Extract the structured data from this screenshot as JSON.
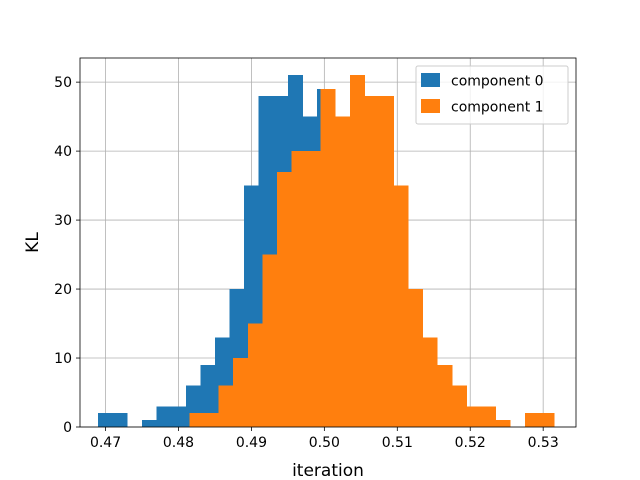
{
  "chart_data": {
    "type": "bar",
    "subtype": "histogram",
    "title": "",
    "xlabel": "iteration",
    "ylabel": "KL",
    "xlim": [
      0.4665,
      0.5345
    ],
    "ylim": [
      0,
      53.5
    ],
    "xticks": [
      0.47,
      0.48,
      0.49,
      0.5,
      0.51,
      0.52,
      0.53
    ],
    "xtick_labels": [
      "0.47",
      "0.48",
      "0.49",
      "0.50",
      "0.51",
      "0.52",
      "0.53"
    ],
    "yticks": [
      0,
      10,
      20,
      30,
      40,
      50
    ],
    "ytick_labels": [
      "0",
      "10",
      "20",
      "30",
      "40",
      "50"
    ],
    "grid": true,
    "legend_position": "top-right",
    "series": [
      {
        "name": "component 0",
        "color": "#1f77b4",
        "bins": [
          {
            "x0": 0.469,
            "x1": 0.471,
            "count": 2
          },
          {
            "x0": 0.471,
            "x1": 0.473,
            "count": 2
          },
          {
            "x0": 0.475,
            "x1": 0.477,
            "count": 1
          },
          {
            "x0": 0.477,
            "x1": 0.479,
            "count": 3
          },
          {
            "x0": 0.479,
            "x1": 0.481,
            "count": 3
          },
          {
            "x0": 0.481,
            "x1": 0.483,
            "count": 6
          },
          {
            "x0": 0.483,
            "x1": 0.485,
            "count": 9
          },
          {
            "x0": 0.485,
            "x1": 0.487,
            "count": 13
          },
          {
            "x0": 0.487,
            "x1": 0.489,
            "count": 20
          },
          {
            "x0": 0.489,
            "x1": 0.491,
            "count": 35
          },
          {
            "x0": 0.491,
            "x1": 0.493,
            "count": 48
          },
          {
            "x0": 0.493,
            "x1": 0.495,
            "count": 48
          },
          {
            "x0": 0.495,
            "x1": 0.497,
            "count": 51
          },
          {
            "x0": 0.497,
            "x1": 0.499,
            "count": 45
          },
          {
            "x0": 0.499,
            "x1": 0.501,
            "count": 49
          }
        ]
      },
      {
        "name": "component 1",
        "color": "#ff7f0e",
        "bins": [
          {
            "x0": 0.4815,
            "x1": 0.4835,
            "count": 2
          },
          {
            "x0": 0.4835,
            "x1": 0.4855,
            "count": 2
          },
          {
            "x0": 0.4855,
            "x1": 0.4875,
            "count": 6
          },
          {
            "x0": 0.4875,
            "x1": 0.4895,
            "count": 10
          },
          {
            "x0": 0.4895,
            "x1": 0.4915,
            "count": 15
          },
          {
            "x0": 0.4915,
            "x1": 0.4935,
            "count": 25
          },
          {
            "x0": 0.4935,
            "x1": 0.4955,
            "count": 37
          },
          {
            "x0": 0.4955,
            "x1": 0.4975,
            "count": 40
          },
          {
            "x0": 0.4975,
            "x1": 0.4995,
            "count": 40
          },
          {
            "x0": 0.4995,
            "x1": 0.5015,
            "count": 49
          },
          {
            "x0": 0.5015,
            "x1": 0.5035,
            "count": 45
          },
          {
            "x0": 0.5035,
            "x1": 0.5055,
            "count": 51
          },
          {
            "x0": 0.5055,
            "x1": 0.5075,
            "count": 48
          },
          {
            "x0": 0.5075,
            "x1": 0.5095,
            "count": 48
          },
          {
            "x0": 0.5095,
            "x1": 0.5115,
            "count": 35
          },
          {
            "x0": 0.5115,
            "x1": 0.5135,
            "count": 20
          },
          {
            "x0": 0.5135,
            "x1": 0.5155,
            "count": 13
          },
          {
            "x0": 0.5155,
            "x1": 0.5175,
            "count": 9
          },
          {
            "x0": 0.5175,
            "x1": 0.5195,
            "count": 6
          },
          {
            "x0": 0.5195,
            "x1": 0.5215,
            "count": 3
          },
          {
            "x0": 0.5215,
            "x1": 0.5235,
            "count": 3
          },
          {
            "x0": 0.5235,
            "x1": 0.5255,
            "count": 1
          },
          {
            "x0": 0.5275,
            "x1": 0.5295,
            "count": 2
          },
          {
            "x0": 0.5295,
            "x1": 0.5315,
            "count": 2
          }
        ]
      }
    ]
  }
}
